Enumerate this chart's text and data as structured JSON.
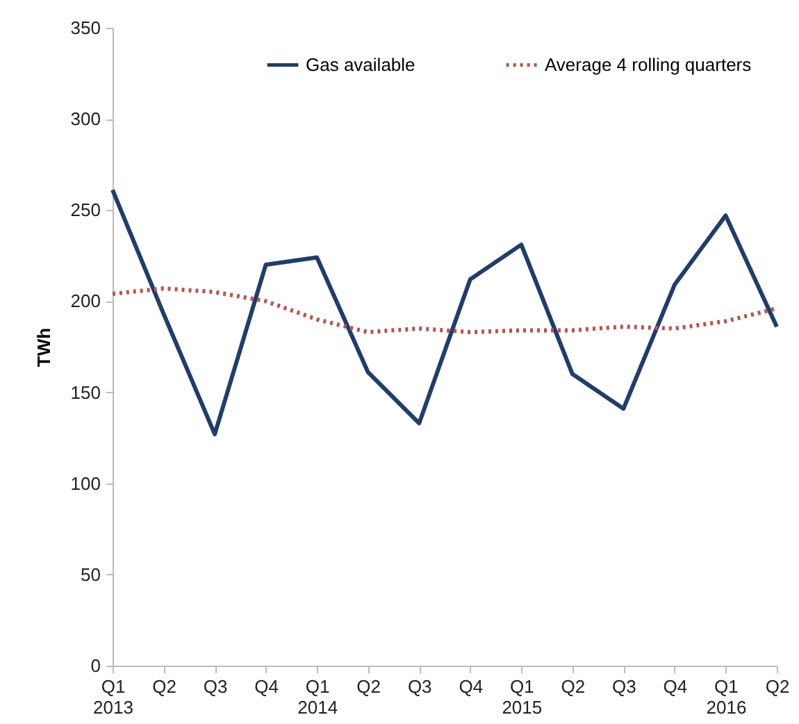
{
  "chart_data": {
    "type": "line",
    "ylabel": "TWh",
    "categories": [
      "Q1 2013",
      "Q2",
      "Q3",
      "Q4",
      "Q1 2014",
      "Q2",
      "Q3",
      "Q4",
      "Q1 2015",
      "Q2",
      "Q3",
      "Q4",
      "Q1 2016",
      "Q2"
    ],
    "series": [
      {
        "name": "Gas available",
        "color": "#1f3d6d",
        "line_style": "solid",
        "values": [
          261,
          193,
          127,
          220,
          224,
          161,
          133,
          212,
          231,
          160,
          141,
          209,
          247,
          186
        ]
      },
      {
        "name": "Average 4 rolling quarters",
        "color": "#c0504d",
        "line_style": "dotted",
        "values": [
          204,
          207,
          205,
          200,
          190,
          183,
          185,
          183,
          184,
          184,
          186,
          185,
          189,
          196
        ]
      }
    ],
    "ylim": [
      0,
      350
    ],
    "yticks": [
      0,
      50,
      100,
      150,
      200,
      250,
      300,
      350
    ],
    "grid": false,
    "legend": "top",
    "marker": "none"
  }
}
